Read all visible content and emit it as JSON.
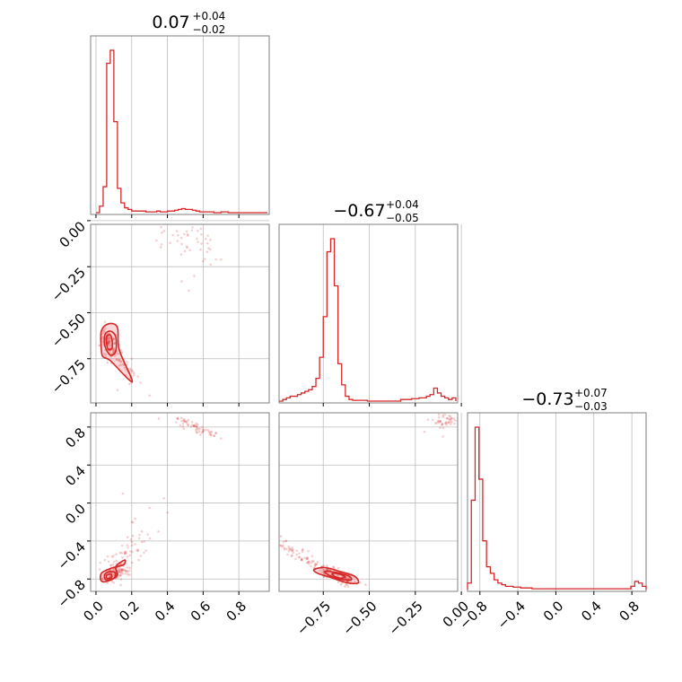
{
  "chart_data": {
    "type": "corner",
    "color": "#d62728",
    "parameters": [
      {
        "title": "0.07",
        "err_plus": "+0.04",
        "err_minus": "−0.02",
        "range": [
          -0.03,
          0.97
        ],
        "ticks": [
          0.0,
          0.2,
          0.4,
          0.6,
          0.8
        ],
        "tick_labels": [
          "0.0",
          "0.2",
          "0.4",
          "0.6",
          "0.8"
        ],
        "hist_bins": [
          0.0,
          0.02,
          0.04,
          0.06,
          0.08,
          0.1,
          0.12,
          0.14,
          0.16,
          0.18,
          0.2,
          0.22,
          0.24,
          0.26,
          0.28,
          0.3,
          0.32,
          0.34,
          0.36,
          0.38,
          0.4,
          0.42,
          0.44,
          0.46,
          0.48,
          0.5,
          0.52,
          0.54,
          0.56,
          0.58,
          0.6,
          0.62,
          0.64,
          0.66,
          0.68,
          0.7,
          0.72,
          0.74,
          0.76,
          0.78,
          0.8,
          0.82,
          0.84,
          0.86,
          0.88,
          0.9,
          0.92,
          0.94,
          0.96
        ],
        "hist_counts": [
          0,
          4,
          16,
          92,
          100,
          56,
          15,
          6,
          3,
          2,
          1,
          1,
          1,
          1,
          0.5,
          0.5,
          0.5,
          1,
          0.5,
          0.5,
          1,
          1,
          1.5,
          2,
          2.5,
          2,
          2,
          1.5,
          1,
          0.5,
          0.5,
          0.5,
          0.5,
          0,
          0,
          0.5,
          0.5,
          0,
          0,
          0,
          0,
          0,
          0,
          0,
          0,
          0,
          0,
          0
        ]
      },
      {
        "title": "−0.67",
        "err_plus": "+0.04",
        "err_minus": "−0.05",
        "range": [
          -0.99,
          -0.02
        ],
        "ticks": [
          -0.75,
          -0.5,
          -0.25,
          0.0
        ],
        "tick_labels": [
          "−0.75",
          "−0.50",
          "−0.25",
          "0.00"
        ],
        "hist_bins": [
          -0.99,
          -0.97,
          -0.95,
          -0.93,
          -0.91,
          -0.89,
          -0.87,
          -0.85,
          -0.83,
          -0.81,
          -0.79,
          -0.77,
          -0.75,
          -0.73,
          -0.71,
          -0.69,
          -0.67,
          -0.65,
          -0.63,
          -0.61,
          -0.59,
          -0.57,
          -0.55,
          -0.53,
          -0.51,
          -0.49,
          -0.47,
          -0.45,
          -0.43,
          -0.41,
          -0.39,
          -0.37,
          -0.35,
          -0.33,
          -0.31,
          -0.29,
          -0.27,
          -0.25,
          -0.23,
          -0.21,
          -0.19,
          -0.17,
          -0.15,
          -0.13,
          -0.11,
          -0.09,
          -0.07,
          -0.05,
          -0.03
        ],
        "hist_counts": [
          0,
          1,
          2,
          3,
          3,
          4,
          5,
          6,
          7,
          9,
          14,
          27,
          52,
          92,
          100,
          71,
          23,
          10,
          3,
          1,
          0.5,
          0.5,
          0.5,
          0.5,
          0,
          0,
          0,
          0,
          0,
          0,
          0,
          0,
          0,
          1,
          1,
          1,
          1.5,
          1.5,
          2,
          2,
          3,
          4,
          8,
          5,
          3,
          2,
          1,
          2,
          0
        ]
      },
      {
        "title": "−0.73",
        "err_plus": "+0.07",
        "err_minus": "−0.03",
        "range": [
          -0.93,
          0.95
        ],
        "ticks": [
          -0.8,
          -0.4,
          0.0,
          0.4,
          0.8
        ],
        "tick_labels": [
          "−0.8",
          "−0.4",
          "0.0",
          "0.4",
          "0.8"
        ],
        "hist_bins": [
          -0.93,
          -0.89,
          -0.85,
          -0.81,
          -0.77,
          -0.73,
          -0.69,
          -0.65,
          -0.61,
          -0.57,
          -0.53,
          -0.49,
          -0.45,
          -0.41,
          -0.37,
          -0.33,
          -0.29,
          -0.25,
          -0.21,
          -0.17,
          -0.13,
          -0.09,
          -0.05,
          -0.01,
          0.03,
          0.07,
          0.11,
          0.15,
          0.19,
          0.23,
          0.27,
          0.31,
          0.35,
          0.39,
          0.43,
          0.47,
          0.51,
          0.55,
          0.59,
          0.63,
          0.67,
          0.71,
          0.75,
          0.79,
          0.83,
          0.87,
          0.91,
          0.95
        ],
        "hist_counts": [
          4,
          55,
          100,
          68,
          30,
          14,
          10,
          6,
          4,
          3,
          2,
          2,
          1.5,
          1.5,
          1,
          1,
          1,
          0.5,
          0.5,
          0.5,
          0.5,
          0.5,
          0.5,
          0.5,
          0.5,
          0.5,
          0.5,
          0.5,
          0.5,
          0.5,
          0.5,
          0.5,
          0.5,
          0.5,
          0.5,
          0.5,
          0.5,
          0.5,
          0.5,
          0.5,
          0.5,
          0.5,
          0.5,
          2,
          5,
          4,
          2
        ]
      }
    ],
    "pairs": [
      {
        "x_param": 0,
        "y_param": 1,
        "cores": [
          [
            0.07,
            -0.66
          ],
          [
            0.06,
            -0.63
          ],
          [
            0.09,
            -0.7
          ]
        ],
        "tails": [
          {
            "from": [
              0.09,
              -0.7
            ],
            "to": [
              0.22,
              -0.86
            ],
            "n": 40,
            "spread": [
              0.02,
              0.03
            ]
          },
          {
            "from": [
              0.4,
              -0.05
            ],
            "to": [
              0.62,
              -0.15
            ],
            "n": 50,
            "spread": [
              0.06,
              0.06
            ]
          }
        ],
        "scatter_extra": [
          [
            0.12,
            -0.92
          ],
          [
            0.25,
            -0.88
          ],
          [
            0.18,
            -0.82
          ],
          [
            0.55,
            -0.3
          ],
          [
            0.48,
            -0.33
          ],
          [
            0.3,
            -0.95
          ],
          [
            0.05,
            -0.55
          ],
          [
            0.2,
            -0.75
          ],
          [
            0.6,
            -0.22
          ],
          [
            0.52,
            -0.38
          ]
        ],
        "contours": [
          [
            [
              0.03,
              -0.7
            ],
            [
              0.03,
              -0.6
            ],
            [
              0.07,
              -0.56
            ],
            [
              0.12,
              -0.58
            ],
            [
              0.13,
              -0.7
            ],
            [
              0.2,
              -0.86
            ],
            [
              0.18,
              -0.86
            ],
            [
              0.08,
              -0.76
            ],
            [
              0.04,
              -0.74
            ]
          ],
          [
            [
              0.05,
              -0.68
            ],
            [
              0.05,
              -0.62
            ],
            [
              0.08,
              -0.6
            ],
            [
              0.11,
              -0.63
            ],
            [
              0.11,
              -0.71
            ],
            [
              0.08,
              -0.73
            ]
          ],
          [
            [
              0.06,
              -0.67
            ],
            [
              0.06,
              -0.63
            ],
            [
              0.08,
              -0.62
            ],
            [
              0.09,
              -0.65
            ],
            [
              0.09,
              -0.69
            ],
            [
              0.07,
              -0.7
            ]
          ]
        ]
      },
      {
        "x_param": 0,
        "y_param": 2,
        "cores": [
          [
            0.07,
            -0.78
          ],
          [
            0.1,
            -0.74
          ],
          [
            0.14,
            -0.7
          ]
        ],
        "tails": [
          {
            "from": [
              0.1,
              -0.74
            ],
            "to": [
              0.25,
              -0.35
            ],
            "n": 55,
            "spread": [
              0.04,
              0.09
            ]
          },
          {
            "from": [
              0.44,
              0.89
            ],
            "to": [
              0.66,
              0.72
            ],
            "n": 60,
            "spread": [
              0.03,
              0.02
            ]
          }
        ],
        "scatter_extra": [
          [
            0.2,
            -0.2
          ],
          [
            0.3,
            -0.05
          ],
          [
            0.15,
            0.1
          ],
          [
            0.35,
            -0.3
          ],
          [
            0.28,
            -0.5
          ],
          [
            0.05,
            -0.6
          ],
          [
            0.02,
            -0.7
          ],
          [
            0.24,
            -0.6
          ],
          [
            0.38,
            0.05
          ],
          [
            0.7,
            0.68
          ],
          [
            0.4,
            -0.1
          ]
        ],
        "contours": [
          [
            [
              0.03,
              -0.82
            ],
            [
              0.03,
              -0.74
            ],
            [
              0.08,
              -0.69
            ],
            [
              0.14,
              -0.66
            ],
            [
              0.16,
              -0.64
            ],
            [
              0.16,
              -0.6
            ],
            [
              0.11,
              -0.67
            ],
            [
              0.12,
              -0.76
            ],
            [
              0.07,
              -0.82
            ]
          ],
          [
            [
              0.05,
              -0.8
            ],
            [
              0.05,
              -0.75
            ],
            [
              0.08,
              -0.72
            ],
            [
              0.11,
              -0.74
            ],
            [
              0.1,
              -0.79
            ],
            [
              0.07,
              -0.81
            ]
          ],
          [
            [
              0.06,
              -0.79
            ],
            [
              0.06,
              -0.76
            ],
            [
              0.08,
              -0.75
            ],
            [
              0.09,
              -0.77
            ],
            [
              0.08,
              -0.79
            ]
          ]
        ]
      },
      {
        "x_param": 1,
        "y_param": 2,
        "cores": [
          [
            -0.72,
            -0.73
          ],
          [
            -0.66,
            -0.78
          ],
          [
            -0.62,
            -0.8
          ]
        ],
        "tails": [
          {
            "from": [
              -0.97,
              -0.45
            ],
            "to": [
              -0.72,
              -0.72
            ],
            "n": 70,
            "spread": [
              0.015,
              0.03
            ]
          },
          {
            "from": [
              -0.14,
              0.82
            ],
            "to": [
              -0.03,
              0.9
            ],
            "n": 45,
            "spread": [
              0.03,
              0.03
            ]
          }
        ],
        "scatter_extra": [
          [
            -0.92,
            -0.5
          ],
          [
            -0.95,
            -0.4
          ],
          [
            -0.85,
            -0.58
          ],
          [
            -0.55,
            -0.84
          ],
          [
            -0.58,
            -0.83
          ],
          [
            -0.2,
            0.75
          ],
          [
            -0.1,
            0.7
          ],
          [
            -0.98,
            -0.35
          ],
          [
            -0.52,
            -0.86
          ]
        ],
        "contours": [
          [
            [
              -0.8,
              -0.7
            ],
            [
              -0.74,
              -0.68
            ],
            [
              -0.66,
              -0.72
            ],
            [
              -0.58,
              -0.77
            ],
            [
              -0.56,
              -0.84
            ],
            [
              -0.62,
              -0.84
            ],
            [
              -0.7,
              -0.79
            ],
            [
              -0.78,
              -0.74
            ]
          ],
          [
            [
              -0.74,
              -0.72
            ],
            [
              -0.68,
              -0.73
            ],
            [
              -0.61,
              -0.77
            ],
            [
              -0.6,
              -0.81
            ],
            [
              -0.66,
              -0.8
            ],
            [
              -0.72,
              -0.76
            ]
          ],
          [
            [
              -0.7,
              -0.74
            ],
            [
              -0.66,
              -0.75
            ],
            [
              -0.63,
              -0.78
            ],
            [
              -0.66,
              -0.79
            ],
            [
              -0.69,
              -0.77
            ]
          ]
        ]
      }
    ]
  }
}
